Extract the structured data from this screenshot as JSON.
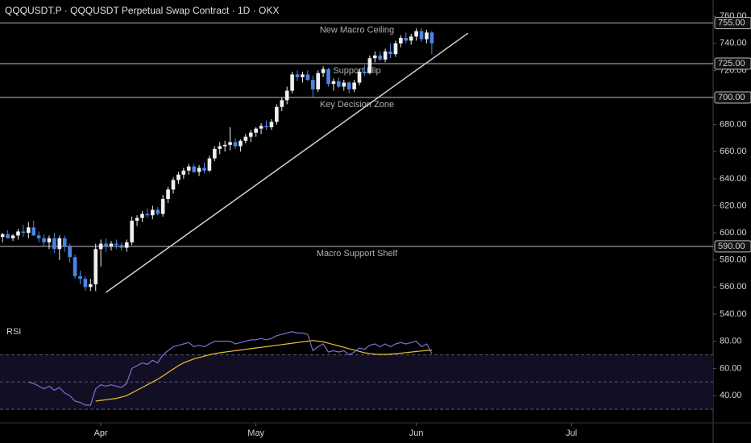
{
  "chart_data": {
    "type": "candlestick",
    "title": "QQQUSDT.P · QQQUSDT Perpetual Swap Contract · 1D · OKX",
    "up_color": "#f0f0f0",
    "down_color": "#4a86e8",
    "x": [
      0,
      1,
      2,
      3,
      4,
      5,
      6,
      7,
      8,
      9,
      10,
      11,
      12,
      13,
      14,
      15,
      16,
      17,
      18,
      19,
      20,
      21,
      22,
      23,
      24,
      25,
      26,
      27,
      28,
      29,
      30,
      31,
      32,
      33,
      34,
      35,
      36,
      37,
      38,
      39,
      40,
      41,
      42,
      43,
      44,
      45,
      46,
      47,
      48,
      49,
      50,
      51,
      52,
      53,
      54,
      55,
      56,
      57,
      58,
      59,
      60,
      61,
      62,
      63,
      64,
      65,
      66,
      67,
      68,
      69,
      70,
      71,
      72,
      73,
      74,
      75,
      76,
      77,
      78,
      79,
      80,
      81,
      82,
      83
    ],
    "candles": [
      [
        597,
        600,
        593,
        599
      ],
      [
        599,
        602,
        596,
        596
      ],
      [
        596,
        599,
        594,
        598
      ],
      [
        598,
        603,
        595,
        601
      ],
      [
        601,
        606,
        597,
        600
      ],
      [
        600,
        608,
        596,
        604
      ],
      [
        604,
        609,
        598,
        598
      ],
      [
        598,
        601,
        593,
        596
      ],
      [
        596,
        599,
        590,
        593
      ],
      [
        593,
        598,
        588,
        596
      ],
      [
        596,
        600,
        585,
        588
      ],
      [
        588,
        598,
        580,
        596
      ],
      [
        596,
        598,
        586,
        590
      ],
      [
        590,
        592,
        578,
        582
      ],
      [
        582,
        584,
        566,
        568
      ],
      [
        568,
        572,
        562,
        566
      ],
      [
        566,
        568,
        557,
        560
      ],
      [
        560,
        566,
        557,
        562
      ],
      [
        562,
        592,
        557,
        588
      ],
      [
        588,
        595,
        575,
        592
      ],
      [
        592,
        596,
        586,
        590
      ],
      [
        590,
        594,
        587,
        592
      ],
      [
        592,
        595,
        588,
        591
      ],
      [
        591,
        593,
        587,
        589
      ],
      [
        589,
        595,
        586,
        593
      ],
      [
        593,
        612,
        591,
        609
      ],
      [
        609,
        613,
        605,
        611
      ],
      [
        611,
        616,
        608,
        614
      ],
      [
        614,
        618,
        611,
        613
      ],
      [
        613,
        620,
        610,
        617
      ],
      [
        617,
        619,
        613,
        614
      ],
      [
        614,
        628,
        612,
        625
      ],
      [
        625,
        634,
        622,
        632
      ],
      [
        632,
        641,
        629,
        639
      ],
      [
        639,
        645,
        636,
        643
      ],
      [
        643,
        648,
        640,
        646
      ],
      [
        646,
        651,
        643,
        649
      ],
      [
        649,
        651,
        644,
        645
      ],
      [
        645,
        650,
        642,
        648
      ],
      [
        648,
        652,
        644,
        646
      ],
      [
        646,
        657,
        645,
        655
      ],
      [
        655,
        664,
        653,
        662
      ],
      [
        662,
        667,
        658,
        664
      ],
      [
        664,
        668,
        660,
        665
      ],
      [
        665,
        678,
        661,
        667
      ],
      [
        667,
        670,
        662,
        664
      ],
      [
        664,
        669,
        660,
        668
      ],
      [
        668,
        673,
        666,
        671
      ],
      [
        671,
        676,
        667,
        674
      ],
      [
        674,
        678,
        671,
        677
      ],
      [
        677,
        681,
        673,
        679
      ],
      [
        679,
        683,
        676,
        678
      ],
      [
        678,
        684,
        676,
        682
      ],
      [
        682,
        695,
        680,
        693
      ],
      [
        693,
        700,
        690,
        698
      ],
      [
        698,
        708,
        695,
        705
      ],
      [
        705,
        719,
        703,
        717
      ],
      [
        717,
        720,
        712,
        715
      ],
      [
        715,
        719,
        711,
        717
      ],
      [
        717,
        720,
        712,
        713
      ],
      [
        713,
        716,
        700,
        706
      ],
      [
        706,
        720,
        704,
        718
      ],
      [
        718,
        723,
        715,
        721
      ],
      [
        721,
        722,
        708,
        710
      ],
      [
        710,
        714,
        705,
        712
      ],
      [
        712,
        715,
        707,
        708
      ],
      [
        708,
        713,
        705,
        711
      ],
      [
        711,
        712,
        703,
        706
      ],
      [
        706,
        713,
        704,
        711
      ],
      [
        711,
        721,
        709,
        719
      ],
      [
        719,
        724,
        716,
        718
      ],
      [
        718,
        731,
        717,
        729
      ],
      [
        729,
        734,
        726,
        731
      ],
      [
        731,
        734,
        727,
        728
      ],
      [
        728,
        736,
        726,
        734
      ],
      [
        734,
        740,
        729,
        732
      ],
      [
        732,
        742,
        730,
        740
      ],
      [
        740,
        746,
        737,
        744
      ],
      [
        744,
        748,
        740,
        742
      ],
      [
        742,
        747,
        739,
        745
      ],
      [
        745,
        751,
        742,
        749
      ],
      [
        749,
        751,
        741,
        743
      ],
      [
        743,
        750,
        740,
        748
      ],
      [
        748,
        749,
        732,
        740
      ]
    ],
    "xlim": [
      -0.5,
      137.4
    ],
    "ylim": [
      534,
      772
    ],
    "yticks": [
      {
        "value": 760,
        "label": "760.00"
      },
      {
        "value": 740,
        "label": "740.00"
      },
      {
        "value": 720,
        "label": "720.00"
      },
      {
        "value": 700,
        "label": "700.00"
      },
      {
        "value": 680,
        "label": "680.00"
      },
      {
        "value": 660,
        "label": "660.00"
      },
      {
        "value": 640,
        "label": "640.00"
      },
      {
        "value": 620,
        "label": "620.00"
      },
      {
        "value": 600,
        "label": "600.00"
      },
      {
        "value": 580,
        "label": "580.00"
      },
      {
        "value": 560,
        "label": "560.00"
      },
      {
        "value": 540,
        "label": "540.00"
      }
    ],
    "xticks": [
      {
        "value": 19,
        "label": "Apr"
      },
      {
        "value": 49,
        "label": "May"
      },
      {
        "value": 80,
        "label": "Jun"
      },
      {
        "value": 110,
        "label": "Jul"
      }
    ],
    "levels": [
      {
        "value": 755,
        "label": "755.00",
        "name": "New Macro Ceiling"
      },
      {
        "value": 725,
        "label": "725.00",
        "name": "Support Flip"
      },
      {
        "value": 700,
        "label": "700.00",
        "name": "Key Decision Zone"
      },
      {
        "value": 590,
        "label": "590.00",
        "name": "Macro Support Shelf"
      }
    ],
    "trendline": {
      "x": [
        20,
        90
      ],
      "y": [
        556,
        747.5
      ]
    },
    "rsi": {
      "title": "RSI",
      "ylim": [
        20,
        91
      ],
      "yticks": [
        {
          "value": 80,
          "label": "80.00"
        },
        {
          "value": 60,
          "label": "60.00"
        },
        {
          "value": 40,
          "label": "40.00"
        }
      ],
      "levels": [
        70,
        50,
        30
      ],
      "line_color": "#7e6fd8",
      "ma_color": "#e8c03a",
      "values": [
        null,
        null,
        null,
        null,
        null,
        50,
        49,
        47,
        45,
        47,
        44,
        46,
        42,
        40,
        36,
        35,
        33,
        33,
        45,
        48,
        47,
        48,
        47,
        46,
        49,
        60,
        62,
        64,
        63,
        66,
        64,
        70,
        73,
        76,
        77,
        78,
        79,
        76,
        77,
        76,
        78,
        80,
        80,
        80,
        80,
        78,
        79,
        80,
        81,
        81,
        82,
        81,
        82,
        84,
        85,
        86,
        87,
        86,
        86,
        85,
        73,
        76,
        78,
        72,
        73,
        72,
        73,
        70,
        72,
        75,
        74,
        77,
        78,
        76,
        78,
        76,
        78,
        79,
        78,
        79,
        80,
        76,
        78,
        71
      ],
      "ma": [
        null,
        null,
        null,
        null,
        null,
        null,
        null,
        null,
        null,
        null,
        null,
        null,
        null,
        null,
        null,
        null,
        null,
        null,
        36,
        36.5,
        37,
        37.5,
        38,
        39,
        40,
        42,
        44,
        46,
        48,
        50,
        52,
        54.5,
        57,
        59.5,
        62,
        64,
        65.5,
        67,
        68,
        69,
        70,
        70.8,
        71.5,
        72,
        72.5,
        73,
        73.5,
        74,
        74.5,
        75,
        75.5,
        76,
        76.5,
        77,
        77.5,
        78,
        78.5,
        79,
        79.5,
        80,
        80.5,
        80,
        79.5,
        78.5,
        77.5,
        76.5,
        75.5,
        74.5,
        73.5,
        72.5,
        71.5,
        71,
        70.5,
        70.3,
        70.3,
        70.5,
        70.8,
        71.2,
        71.6,
        72,
        72.4,
        72.8,
        73.2,
        73.5
      ]
    }
  }
}
